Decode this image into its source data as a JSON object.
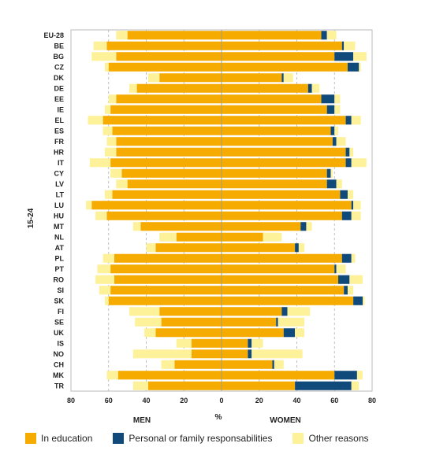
{
  "chart_data": {
    "type": "bar",
    "orientation": "horizontal-diverging",
    "y_group_label": "15-24",
    "xlabel": "%",
    "left_label": "MEN",
    "right_label": "WOMEN",
    "xlim": [
      -80,
      80
    ],
    "x_ticks": [
      80,
      60,
      40,
      20,
      0,
      20,
      40,
      60,
      80
    ],
    "colors": {
      "In education": "#f5ab00",
      "Personal or family responsabilities": "#0f4a7a",
      "Other reasons": "#fdf29a"
    },
    "categories": [
      "EU-28",
      "BE",
      "BG",
      "CZ",
      "DK",
      "DE",
      "EE",
      "IE",
      "EL",
      "ES",
      "FR",
      "HR",
      "IT",
      "CY",
      "LV",
      "LT",
      "LU",
      "HU",
      "MT",
      "NL",
      "AT",
      "PL",
      "PT",
      "RO",
      "SI",
      "SK",
      "FI",
      "SE",
      "UK",
      "IS",
      "NO",
      "CH",
      "MK",
      "TR"
    ],
    "men": [
      {
        "name": "In education",
        "values": [
          50,
          61,
          56,
          60,
          33,
          45,
          56,
          59,
          63,
          58,
          56,
          56,
          59,
          53,
          50,
          58,
          69,
          61,
          43,
          24,
          35,
          57,
          59,
          57,
          59,
          60,
          33,
          32,
          35,
          16,
          16,
          25,
          55,
          39
        ]
      },
      {
        "name": "Personal or family responsabilities",
        "values": [
          0,
          0,
          0,
          0,
          0,
          0,
          0,
          0,
          0,
          0,
          0,
          0,
          0,
          0,
          0,
          0,
          0,
          0,
          0,
          0,
          0,
          0,
          0,
          0,
          0,
          0,
          0,
          0,
          0,
          0,
          0,
          0,
          0,
          0
        ]
      },
      {
        "name": "Other reasons",
        "values": [
          6,
          7,
          13,
          2,
          6,
          4,
          4,
          3,
          8,
          5,
          5,
          6,
          11,
          6,
          6,
          4,
          3,
          6,
          4,
          9,
          5,
          6,
          7,
          10,
          6,
          2,
          16,
          14,
          6,
          8,
          31,
          7,
          6,
          8
        ]
      }
    ],
    "women": [
      {
        "name": "In education",
        "values": [
          53,
          64,
          60,
          67,
          32,
          46,
          53,
          56,
          66,
          58,
          59,
          66,
          66,
          56,
          56,
          63,
          69,
          64,
          42,
          22,
          39,
          64,
          60,
          62,
          65,
          70,
          32,
          29,
          33,
          14,
          14,
          27,
          60,
          39
        ]
      },
      {
        "name": "Personal or family responsabilities",
        "values": [
          3,
          1,
          10,
          6,
          1,
          2,
          7,
          4,
          3,
          2,
          2,
          2,
          3,
          2,
          5,
          4,
          1,
          5,
          3,
          0,
          2,
          5,
          1,
          6,
          2,
          5,
          3,
          1,
          6,
          2,
          2,
          1,
          12,
          30
        ]
      },
      {
        "name": "Other reasons",
        "values": [
          5,
          6,
          7,
          1,
          5,
          4,
          3,
          3,
          5,
          2,
          5,
          2,
          8,
          1,
          3,
          3,
          4,
          5,
          3,
          10,
          3,
          2,
          5,
          7,
          3,
          1,
          12,
          14,
          5,
          6,
          27,
          5,
          3,
          4
        ]
      }
    ]
  },
  "legend": {
    "education": "In education",
    "family": "Personal or family responsabilities",
    "other": "Other reasons"
  }
}
